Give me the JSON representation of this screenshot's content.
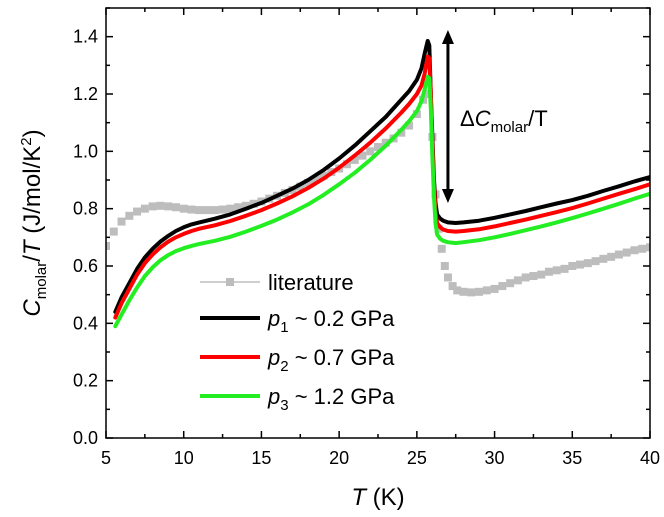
{
  "chart_data": {
    "type": "line",
    "title": "",
    "xlabel": {
      "symbol": "T",
      "unit": " (K)"
    },
    "ylabel": {
      "symbol": "C",
      "sub": "molar",
      "rest1": "/",
      "T": "T",
      "rest2": " (J/mol/K",
      "sup": "2",
      "rest3": ")"
    },
    "xlim": [
      5,
      40
    ],
    "ylim": [
      0.0,
      1.5
    ],
    "xticks": [
      "5",
      "10",
      "15",
      "20",
      "25",
      "30",
      "35",
      "40"
    ],
    "yticks": [
      "0.0",
      "0.2",
      "0.4",
      "0.6",
      "0.8",
      "1.0",
      "1.2",
      "1.4"
    ],
    "grid": false,
    "legend_position": "center-left",
    "annotation": {
      "delta": "Δ",
      "symbol": "C",
      "sub": "molar",
      "rest": "/T"
    },
    "series": [
      {
        "name": "literature",
        "legend": {
          "symbol": "literature"
        },
        "color": "#bdbdbd",
        "style": "squares",
        "x": [
          5.0,
          5.5,
          6.0,
          6.5,
          7.0,
          7.5,
          8.0,
          8.5,
          9.0,
          9.5,
          10.0,
          10.5,
          11.0,
          11.5,
          12.0,
          12.5,
          13.0,
          13.5,
          14.0,
          14.5,
          15.0,
          15.5,
          16.0,
          16.5,
          17.0,
          17.5,
          18.0,
          18.5,
          19.0,
          19.5,
          20.0,
          20.5,
          21.0,
          21.5,
          22.0,
          22.5,
          23.0,
          23.5,
          24.0,
          24.5,
          25.0,
          25.4,
          25.7,
          26.0,
          26.2,
          26.4,
          26.6,
          26.8,
          27.0,
          27.3,
          27.6,
          28.0,
          28.5,
          29.0,
          29.5,
          30.0,
          30.5,
          31.0,
          31.5,
          32.0,
          32.5,
          33.0,
          33.5,
          34.0,
          34.5,
          35.0,
          35.5,
          36.0,
          36.5,
          37.0,
          37.5,
          38.0,
          38.5,
          39.0,
          39.5,
          40.0
        ],
        "y": [
          0.67,
          0.72,
          0.755,
          0.775,
          0.79,
          0.8,
          0.808,
          0.81,
          0.808,
          0.805,
          0.8,
          0.797,
          0.795,
          0.795,
          0.795,
          0.797,
          0.8,
          0.805,
          0.81,
          0.817,
          0.825,
          0.835,
          0.845,
          0.855,
          0.865,
          0.877,
          0.89,
          0.902,
          0.915,
          0.928,
          0.94,
          0.955,
          0.97,
          0.985,
          1.0,
          1.015,
          1.03,
          1.045,
          1.065,
          1.09,
          1.13,
          1.18,
          1.2,
          1.05,
          0.85,
          0.73,
          0.66,
          0.6,
          0.56,
          0.53,
          0.515,
          0.51,
          0.508,
          0.51,
          0.515,
          0.52,
          0.53,
          0.54,
          0.55,
          0.56,
          0.565,
          0.57,
          0.58,
          0.585,
          0.59,
          0.6,
          0.605,
          0.61,
          0.617,
          0.625,
          0.632,
          0.64,
          0.647,
          0.655,
          0.66,
          0.665
        ]
      },
      {
        "name": "p1 ~ 0.2 GPa",
        "legend": {
          "symbol": "p",
          "sub": "1",
          "rest": " ~ 0.2 GPa"
        },
        "color": "#000000",
        "style": "line",
        "x": [
          5.6,
          6.0,
          6.5,
          7.0,
          7.5,
          8.0,
          8.5,
          9.0,
          9.5,
          10.0,
          10.5,
          11.0,
          12.0,
          13.0,
          14.0,
          15.0,
          16.0,
          17.0,
          18.0,
          19.0,
          20.0,
          21.0,
          22.0,
          23.0,
          24.0,
          24.5,
          25.0,
          25.3,
          25.5,
          25.7,
          25.8,
          25.9,
          26.0,
          26.1,
          26.2,
          26.3,
          26.5,
          26.7,
          27.0,
          27.5,
          28.0,
          29.0,
          30.0,
          31.0,
          32.0,
          33.0,
          34.0,
          35.0,
          36.0,
          37.0,
          38.0,
          39.0,
          40.0
        ],
        "y": [
          0.44,
          0.49,
          0.54,
          0.59,
          0.63,
          0.66,
          0.685,
          0.705,
          0.722,
          0.735,
          0.745,
          0.752,
          0.765,
          0.78,
          0.8,
          0.82,
          0.845,
          0.87,
          0.9,
          0.935,
          0.975,
          1.02,
          1.07,
          1.12,
          1.18,
          1.21,
          1.25,
          1.29,
          1.34,
          1.385,
          1.37,
          1.2,
          1.05,
          0.9,
          0.82,
          0.78,
          0.765,
          0.758,
          0.752,
          0.75,
          0.752,
          0.758,
          0.768,
          0.78,
          0.792,
          0.805,
          0.818,
          0.83,
          0.845,
          0.862,
          0.878,
          0.895,
          0.91
        ]
      },
      {
        "name": "p2 ~ 0.7 GPa",
        "legend": {
          "symbol": "p",
          "sub": "2",
          "rest": " ~ 0.7 GPa"
        },
        "color": "#ff0000",
        "style": "line",
        "x": [
          5.6,
          6.0,
          6.5,
          7.0,
          7.5,
          8.0,
          8.5,
          9.0,
          9.5,
          10.0,
          10.5,
          11.0,
          12.0,
          13.0,
          14.0,
          15.0,
          16.0,
          17.0,
          18.0,
          19.0,
          20.0,
          21.0,
          22.0,
          23.0,
          24.0,
          24.5,
          25.0,
          25.3,
          25.5,
          25.7,
          25.8,
          25.9,
          26.0,
          26.1,
          26.2,
          26.3,
          26.5,
          26.7,
          27.0,
          27.5,
          28.0,
          29.0,
          30.0,
          31.0,
          32.0,
          33.0,
          34.0,
          35.0,
          36.0,
          37.0,
          38.0,
          39.0,
          40.0
        ],
        "y": [
          0.42,
          0.47,
          0.52,
          0.57,
          0.61,
          0.64,
          0.665,
          0.685,
          0.7,
          0.712,
          0.722,
          0.73,
          0.742,
          0.757,
          0.775,
          0.795,
          0.818,
          0.843,
          0.872,
          0.905,
          0.943,
          0.985,
          1.03,
          1.08,
          1.135,
          1.165,
          1.2,
          1.23,
          1.27,
          1.33,
          1.325,
          1.2,
          1.02,
          0.88,
          0.79,
          0.75,
          0.735,
          0.727,
          0.722,
          0.72,
          0.722,
          0.728,
          0.738,
          0.75,
          0.762,
          0.775,
          0.788,
          0.802,
          0.818,
          0.835,
          0.852,
          0.868,
          0.885
        ]
      },
      {
        "name": "p3 ~ 1.2 GPa",
        "legend": {
          "symbol": "p",
          "sub": "3",
          "rest": " ~ 1.2 GPa"
        },
        "color": "#22ee22",
        "style": "line",
        "x": [
          5.6,
          6.0,
          6.5,
          7.0,
          7.5,
          8.0,
          8.5,
          9.0,
          9.5,
          10.0,
          10.5,
          11.0,
          12.0,
          13.0,
          14.0,
          15.0,
          16.0,
          17.0,
          18.0,
          19.0,
          20.0,
          21.0,
          22.0,
          23.0,
          24.0,
          24.5,
          25.0,
          25.3,
          25.5,
          25.7,
          25.8,
          25.9,
          26.0,
          26.1,
          26.2,
          26.3,
          26.5,
          26.7,
          27.0,
          27.5,
          28.0,
          29.0,
          30.0,
          31.0,
          32.0,
          33.0,
          34.0,
          35.0,
          36.0,
          37.0,
          38.0,
          39.0,
          40.0
        ],
        "y": [
          0.39,
          0.43,
          0.48,
          0.525,
          0.565,
          0.595,
          0.62,
          0.638,
          0.652,
          0.662,
          0.67,
          0.677,
          0.688,
          0.702,
          0.72,
          0.74,
          0.762,
          0.787,
          0.815,
          0.848,
          0.885,
          0.925,
          0.97,
          1.02,
          1.075,
          1.105,
          1.14,
          1.175,
          1.215,
          1.26,
          1.255,
          1.15,
          0.98,
          0.84,
          0.75,
          0.71,
          0.695,
          0.688,
          0.683,
          0.68,
          0.683,
          0.69,
          0.7,
          0.712,
          0.725,
          0.738,
          0.752,
          0.767,
          0.783,
          0.8,
          0.817,
          0.835,
          0.852
        ]
      }
    ]
  }
}
